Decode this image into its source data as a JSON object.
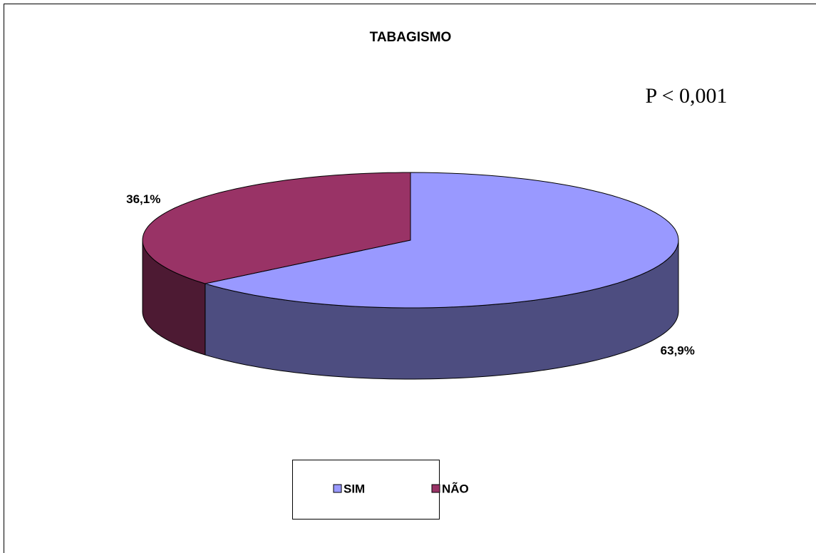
{
  "chart_data": {
    "type": "pie",
    "title": "TABAGISMO",
    "annotation": "P < 0,001",
    "categories": [
      "SIM",
      "NÃO"
    ],
    "values": [
      63.9,
      36.1
    ],
    "value_labels": [
      "63,9%",
      "36,1%"
    ],
    "colors": [
      "#9999ff",
      "#993366"
    ],
    "side_colors": [
      "#4d4d80",
      "#4d1a33"
    ],
    "legend": "bottom",
    "3d": true
  }
}
